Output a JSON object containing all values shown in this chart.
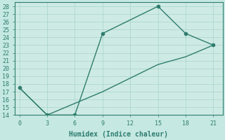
{
  "xlabel": "Humidex (Indice chaleur)",
  "x_line1": [
    0,
    3,
    6,
    9,
    15,
    18,
    21
  ],
  "y_line1": [
    17.5,
    14,
    14,
    24.5,
    28,
    24.5,
    23
  ],
  "x_line2": [
    0,
    3,
    6,
    9,
    15,
    18,
    21
  ],
  "y_line2": [
    17.5,
    14,
    15.5,
    17,
    20.5,
    21.5,
    23
  ],
  "line_color": "#2e7d6e",
  "bg_color": "#c5e8e2",
  "plot_bg_color": "#ceeae4",
  "grid_color": "#a8d4cc",
  "xlim": [
    -0.5,
    22
  ],
  "ylim": [
    14,
    28.5
  ],
  "xticks": [
    0,
    3,
    6,
    9,
    12,
    15,
    18,
    21
  ],
  "yticks": [
    14,
    15,
    16,
    17,
    18,
    19,
    20,
    21,
    22,
    23,
    24,
    25,
    26,
    27,
    28
  ],
  "marker_size": 3,
  "font_family": "monospace",
  "xlabel_fontsize": 7,
  "tick_fontsize": 6
}
